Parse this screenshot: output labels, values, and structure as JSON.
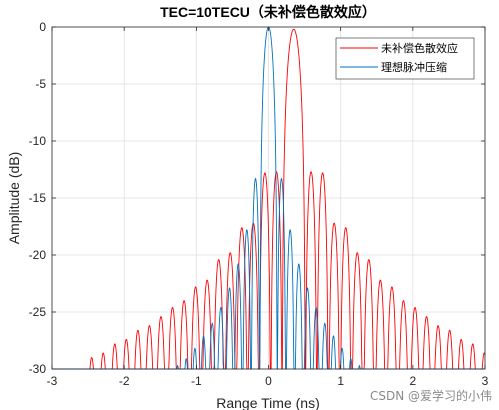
{
  "chart_data": {
    "type": "line",
    "title": "TEC=10TECU（未补偿色散效应）",
    "xlabel": "Range Time (ns)",
    "ylabel": "Amplitude (dB)",
    "xlim": [
      -3,
      3
    ],
    "ylim": [
      -30,
      0
    ],
    "xticks": [
      -3,
      -2,
      -1,
      0,
      1,
      2,
      3
    ],
    "yticks": [
      0,
      -5,
      -10,
      -15,
      -20,
      -25,
      -30
    ],
    "grid": true,
    "legend_position": "top-right",
    "series": [
      {
        "name": "未补偿色散效应",
        "color": "#ff0000",
        "peak_time": 0.35,
        "peak_db": -0.2,
        "null_spacing": 0.16,
        "sidelobe_db": [
          -12.7,
          -12.8,
          -17.2,
          -17.6,
          -19.8,
          -20.4,
          -22.2,
          -22.8,
          -24.0,
          -24.6,
          -25.4,
          -26.2,
          -26.6,
          -27.4,
          -27.8,
          -28.6,
          -29.0
        ]
      },
      {
        "name": "理想脉冲压缩",
        "color": "#0072bd",
        "peak_time": 0.0,
        "peak_db": 0.0,
        "null_spacing": 0.12,
        "sidelobe_db": [
          -13.3,
          -17.8,
          -20.8,
          -22.9,
          -24.6,
          -26.0,
          -27.1,
          -28.2,
          -29.1,
          -29.7
        ]
      }
    ]
  },
  "watermark": "CSDN @爱学习的小伟"
}
